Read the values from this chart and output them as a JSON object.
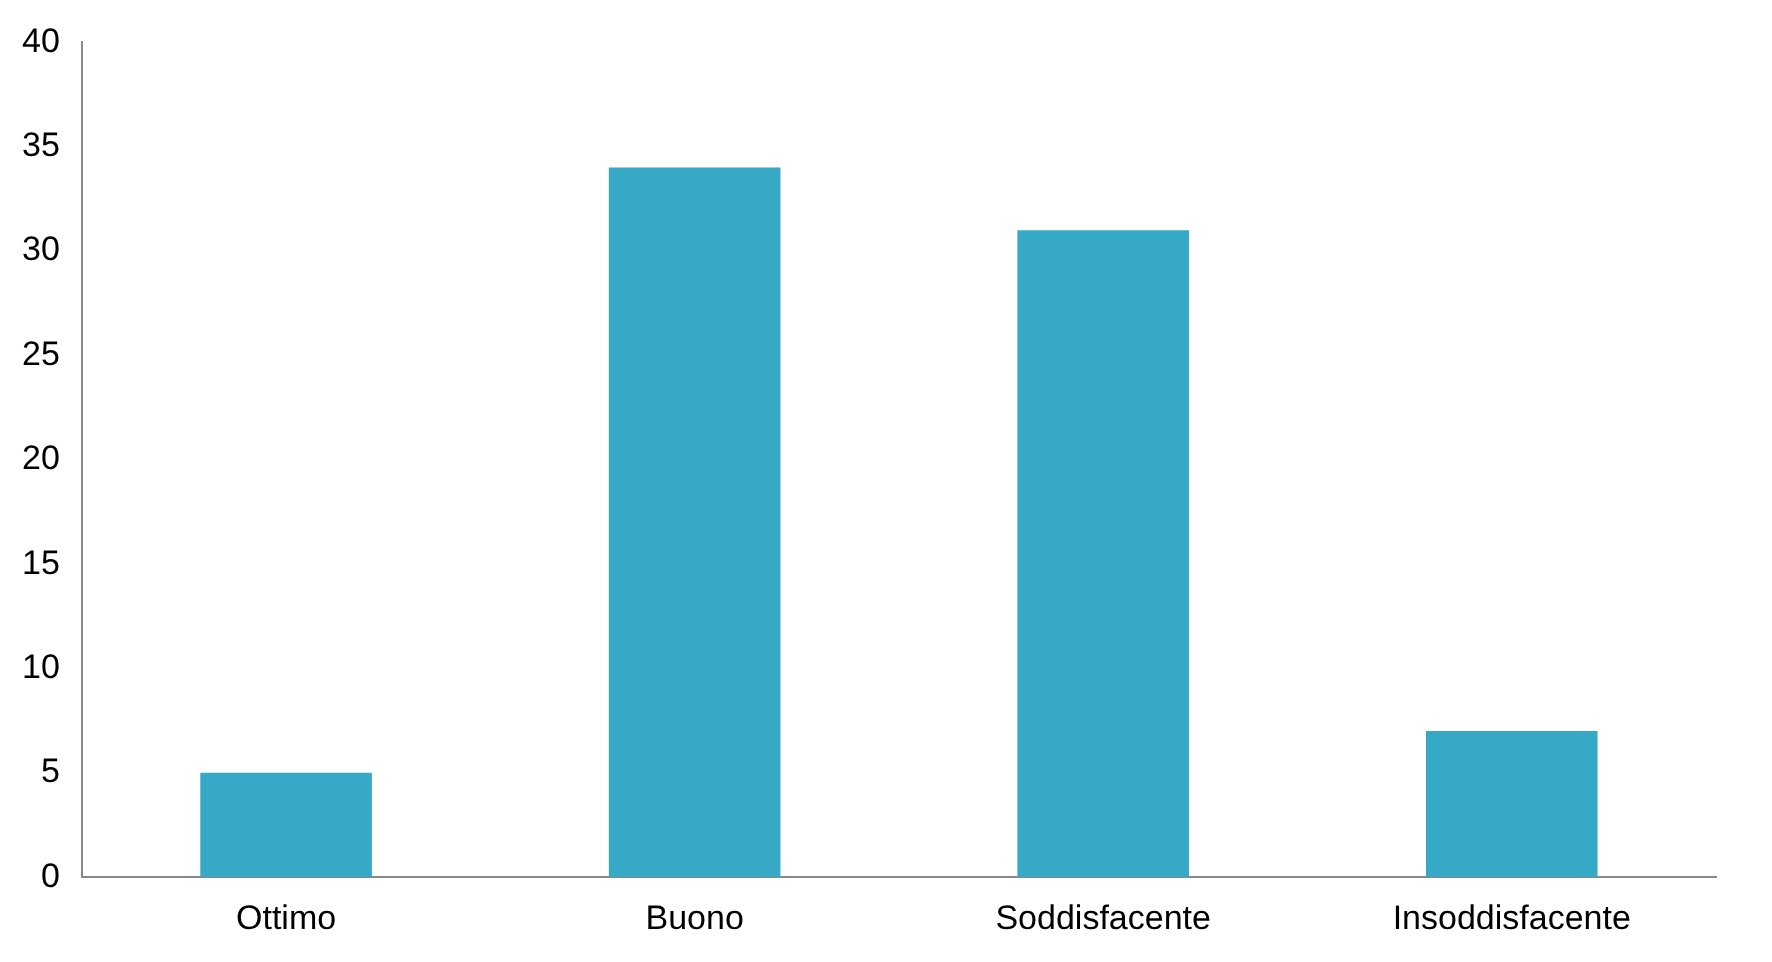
{
  "chart_data": {
    "type": "bar",
    "categories": [
      "Ottimo",
      "Buono",
      "Soddisfacente",
      "Insoddisfacente"
    ],
    "values": [
      5,
      34,
      31,
      7
    ],
    "color": "#35a9c6",
    "ylim": [
      0,
      40
    ],
    "yticks": [
      0,
      5,
      10,
      15,
      20,
      25,
      30,
      35,
      40
    ],
    "grid": false,
    "legend": false
  }
}
